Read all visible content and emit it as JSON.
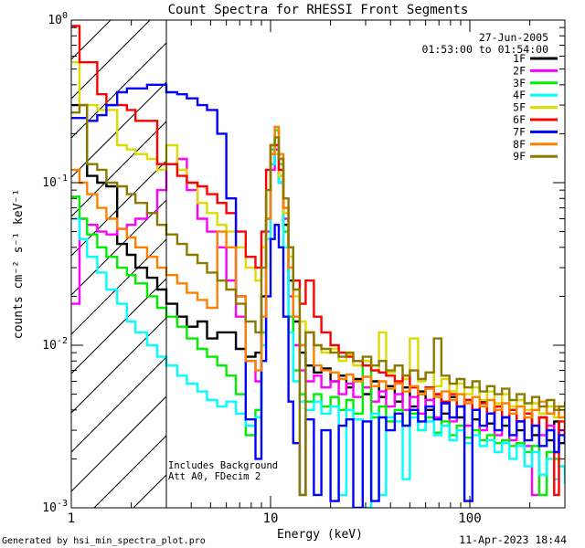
{
  "title": "Count Spectra for RHESSI Front Segments",
  "header": {
    "date": "27-Jun-2005",
    "time_range": "01:53:00 to 01:54:00"
  },
  "annotations": {
    "line1": "Includes Background",
    "line2": "Att A0, FDecim 2"
  },
  "axes": {
    "xlabel": "Energy (keV)",
    "ylabel": "counts cm⁻² s⁻¹ keV⁻¹",
    "x_tick_labels": [
      "1",
      "10",
      "100"
    ],
    "y_ticks": [
      {
        "value": 1,
        "exp": "0"
      },
      {
        "value": 0.1,
        "exp": "-1"
      },
      {
        "value": 0.01,
        "exp": "-2"
      },
      {
        "value": 0.001,
        "exp": "-3"
      }
    ]
  },
  "footer": {
    "left": "Generated by hsi_min_spectra_plot.pro",
    "right": "11-Apr-2023 18:44"
  },
  "chart_data": {
    "type": "line",
    "x_scale": "log",
    "y_scale": "log",
    "xlim": [
      1,
      300
    ],
    "ylim": [
      0.001,
      1
    ],
    "grid": false,
    "legend_position": "top-right",
    "hatch_region_kev": [
      1,
      3
    ],
    "x": [
      1.0,
      1.1,
      1.2,
      1.35,
      1.5,
      1.7,
      1.9,
      2.1,
      2.4,
      2.7,
      3.0,
      3.4,
      3.8,
      4.3,
      4.8,
      5.4,
      6.0,
      6.7,
      7.5,
      8.4,
      9.0,
      9.5,
      10.0,
      10.5,
      11.0,
      11.6,
      12.3,
      13.0,
      14.0,
      15.0,
      16.5,
      18.0,
      20.0,
      22.0,
      24.0,
      26.0,
      29.0,
      32.0,
      35.0,
      38.0,
      42.0,
      46.0,
      50.0,
      55.0,
      60.0,
      66.0,
      72.0,
      79.0,
      86.0,
      94.0,
      103.0,
      112.0,
      122.0,
      133.0,
      145.0,
      158.0,
      172.0,
      188.0,
      205.0,
      223.0,
      243.0,
      265.0,
      280.0,
      300.0
    ],
    "series": [
      {
        "name": "1F",
        "color": "#000000",
        "values": [
          0.3,
          0.3,
          0.11,
          0.1,
          0.095,
          0.042,
          0.036,
          0.03,
          0.026,
          0.022,
          0.018,
          0.015,
          0.013,
          0.014,
          0.011,
          0.012,
          0.012,
          0.0095,
          0.0085,
          0.009,
          0.02,
          0.06,
          0.13,
          0.15,
          0.1,
          0.055,
          0.025,
          0.014,
          0.009,
          0.0075,
          0.0068,
          0.0072,
          0.006,
          0.0065,
          0.0055,
          0.0062,
          0.005,
          0.006,
          0.0048,
          0.0056,
          0.0045,
          0.0055,
          0.0042,
          0.0052,
          0.004,
          0.005,
          0.0038,
          0.0048,
          0.0036,
          0.0046,
          0.0035,
          0.0045,
          0.0033,
          0.0042,
          0.0032,
          0.004,
          0.003,
          0.0038,
          0.0028,
          0.0036,
          0.0026,
          0.0034,
          0.0025,
          0.003
        ]
      },
      {
        "name": "2F",
        "color": "#FF00FF",
        "values": [
          0.018,
          0.06,
          0.055,
          0.05,
          0.048,
          0.052,
          0.055,
          0.06,
          0.065,
          0.09,
          0.13,
          0.14,
          0.09,
          0.06,
          0.05,
          0.04,
          0.025,
          0.015,
          0.008,
          0.006,
          0.015,
          0.05,
          0.12,
          0.16,
          0.11,
          0.06,
          0.02,
          0.01,
          0.007,
          0.006,
          0.0065,
          0.0055,
          0.006,
          0.005,
          0.0058,
          0.0048,
          0.0055,
          0.0045,
          0.0052,
          0.0042,
          0.005,
          0.004,
          0.0048,
          0.0038,
          0.0046,
          0.0036,
          0.0044,
          0.0034,
          0.0042,
          0.0032,
          0.004,
          0.003,
          0.0038,
          0.0028,
          0.0036,
          0.0026,
          0.0034,
          0.0024,
          0.0012,
          0.0028,
          0.0032,
          0.0022,
          0.003,
          0.0026
        ]
      },
      {
        "name": "3F",
        "color": "#00EE00",
        "values": [
          0.082,
          0.06,
          0.048,
          0.04,
          0.035,
          0.03,
          0.027,
          0.024,
          0.02,
          0.017,
          0.015,
          0.013,
          0.011,
          0.0095,
          0.0085,
          0.0075,
          0.0065,
          0.005,
          0.0028,
          0.004,
          0.012,
          0.06,
          0.16,
          0.21,
          0.13,
          0.05,
          0.015,
          0.007,
          0.005,
          0.0045,
          0.005,
          0.0042,
          0.0048,
          0.004,
          0.0046,
          0.0038,
          0.008,
          0.0036,
          0.0042,
          0.0034,
          0.004,
          0.0032,
          0.0038,
          0.003,
          0.0036,
          0.0029,
          0.0034,
          0.0028,
          0.0032,
          0.0027,
          0.003,
          0.0026,
          0.0028,
          0.0025,
          0.0026,
          0.0024,
          0.0025,
          0.0022,
          0.0024,
          0.0012,
          0.0022,
          0.002,
          0.0018,
          0.0016
        ]
      },
      {
        "name": "4F",
        "color": "#00FFFF",
        "values": [
          0.06,
          0.045,
          0.035,
          0.028,
          0.022,
          0.018,
          0.014,
          0.012,
          0.01,
          0.0085,
          0.0075,
          0.0065,
          0.0058,
          0.0052,
          0.0046,
          0.0042,
          0.0045,
          0.0038,
          0.0032,
          0.0036,
          0.01,
          0.045,
          0.13,
          0.17,
          0.1,
          0.04,
          0.012,
          0.006,
          0.0045,
          0.004,
          0.0045,
          0.0038,
          0.0042,
          0.0012,
          0.004,
          0.0035,
          0.001,
          0.0038,
          0.0012,
          0.0036,
          0.0034,
          0.0015,
          0.0036,
          0.003,
          0.0034,
          0.0028,
          0.0032,
          0.0026,
          0.003,
          0.0025,
          0.0028,
          0.0024,
          0.0026,
          0.0022,
          0.0025,
          0.002,
          0.0024,
          0.0018,
          0.0022,
          0.0016,
          0.002,
          0.0015,
          0.0018,
          0.0014
        ]
      },
      {
        "name": "5F",
        "color": "#DCDC00",
        "values": [
          0.55,
          0.3,
          0.3,
          0.28,
          0.28,
          0.17,
          0.16,
          0.15,
          0.14,
          0.12,
          0.17,
          0.12,
          0.1,
          0.075,
          0.065,
          0.055,
          0.05,
          0.04,
          0.03,
          0.025,
          0.04,
          0.09,
          0.15,
          0.15,
          0.11,
          0.065,
          0.035,
          0.02,
          0.014,
          0.012,
          0.01,
          0.009,
          0.0095,
          0.008,
          0.0088,
          0.0075,
          0.008,
          0.007,
          0.012,
          0.0068,
          0.0075,
          0.0062,
          0.011,
          0.006,
          0.0068,
          0.0056,
          0.0062,
          0.0052,
          0.0058,
          0.005,
          0.0055,
          0.0046,
          0.0052,
          0.0044,
          0.005,
          0.0042,
          0.0046,
          0.004,
          0.0044,
          0.0038,
          0.0042,
          0.0036,
          0.004,
          0.0034
        ]
      },
      {
        "name": "6F",
        "color": "#FF0000",
        "values": [
          0.92,
          0.55,
          0.55,
          0.35,
          0.3,
          0.3,
          0.28,
          0.24,
          0.24,
          0.13,
          0.13,
          0.11,
          0.1,
          0.095,
          0.085,
          0.075,
          0.065,
          0.05,
          0.035,
          0.03,
          0.05,
          0.12,
          0.17,
          0.17,
          0.12,
          0.07,
          0.04,
          0.025,
          0.018,
          0.025,
          0.015,
          0.012,
          0.01,
          0.009,
          0.0085,
          0.008,
          0.0075,
          0.007,
          0.0068,
          0.0065,
          0.006,
          0.0065,
          0.0055,
          0.005,
          0.0055,
          0.005,
          0.0045,
          0.005,
          0.0042,
          0.0046,
          0.004,
          0.0044,
          0.0038,
          0.0042,
          0.0036,
          0.004,
          0.0034,
          0.0038,
          0.0032,
          0.0036,
          0.003,
          0.0012,
          0.0034,
          0.0028
        ]
      },
      {
        "name": "7F",
        "color": "#0000FF",
        "values": [
          0.25,
          0.25,
          0.24,
          0.26,
          0.3,
          0.36,
          0.38,
          0.38,
          0.4,
          0.4,
          0.36,
          0.35,
          0.33,
          0.3,
          0.28,
          0.2,
          0.08,
          0.02,
          0.0035,
          0.002,
          0.008,
          0.02,
          0.045,
          0.055,
          0.04,
          0.015,
          0.0045,
          0.0025,
          0.0012,
          0.0035,
          0.0012,
          0.003,
          0.0011,
          0.0032,
          0.0035,
          0.001,
          0.0034,
          0.0011,
          0.0036,
          0.003,
          0.0038,
          0.0032,
          0.004,
          0.0034,
          0.0042,
          0.0035,
          0.0044,
          0.0036,
          0.0042,
          0.0011,
          0.004,
          0.0032,
          0.0038,
          0.003,
          0.0036,
          0.0028,
          0.0034,
          0.0026,
          0.0032,
          0.0024,
          0.003,
          0.0022,
          0.0028,
          0.0025
        ]
      },
      {
        "name": "8F",
        "color": "#FF8000",
        "values": [
          0.12,
          0.1,
          0.085,
          0.07,
          0.06,
          0.052,
          0.046,
          0.04,
          0.035,
          0.03,
          0.027,
          0.024,
          0.021,
          0.019,
          0.017,
          0.05,
          0.04,
          0.02,
          0.008,
          0.007,
          0.015,
          0.06,
          0.15,
          0.22,
          0.15,
          0.07,
          0.03,
          0.015,
          0.01,
          0.012,
          0.0075,
          0.007,
          0.0068,
          0.0062,
          0.0066,
          0.006,
          0.0064,
          0.0056,
          0.006,
          0.0054,
          0.0058,
          0.0052,
          0.0056,
          0.005,
          0.0054,
          0.0048,
          0.0052,
          0.0046,
          0.005,
          0.0044,
          0.0048,
          0.0042,
          0.0046,
          0.004,
          0.0044,
          0.0038,
          0.0042,
          0.0036,
          0.004,
          0.0045,
          0.0038,
          0.0042,
          0.0036,
          0.004
        ]
      },
      {
        "name": "9F",
        "color": "#8C7A00",
        "values": [
          0.27,
          0.3,
          0.13,
          0.12,
          0.1,
          0.095,
          0.085,
          0.075,
          0.065,
          0.055,
          0.048,
          0.042,
          0.036,
          0.032,
          0.028,
          0.025,
          0.022,
          0.018,
          0.014,
          0.012,
          0.03,
          0.09,
          0.17,
          0.19,
          0.14,
          0.08,
          0.04,
          0.022,
          0.0012,
          0.012,
          0.01,
          0.0095,
          0.009,
          0.0085,
          0.009,
          0.008,
          0.0085,
          0.0075,
          0.008,
          0.007,
          0.0075,
          0.0065,
          0.007,
          0.0062,
          0.0068,
          0.011,
          0.0065,
          0.0058,
          0.0062,
          0.0055,
          0.006,
          0.0052,
          0.0056,
          0.005,
          0.0054,
          0.0046,
          0.005,
          0.0044,
          0.0048,
          0.0042,
          0.0046,
          0.004,
          0.0042,
          0.0045
        ]
      }
    ]
  }
}
